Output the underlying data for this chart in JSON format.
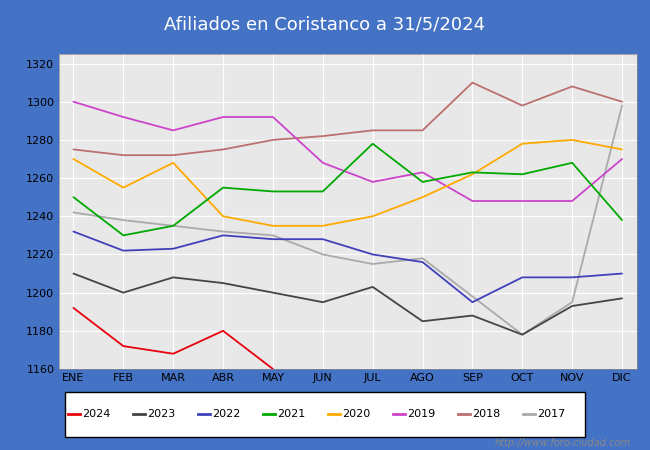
{
  "title": "Afiliados en Coristanco a 31/5/2024",
  "title_bg_color": "#4472c4",
  "title_text_color": "white",
  "months": [
    "ENE",
    "FEB",
    "MAR",
    "ABR",
    "MAY",
    "JUN",
    "JUL",
    "AGO",
    "SEP",
    "OCT",
    "NOV",
    "DIC"
  ],
  "ylim": [
    1160,
    1325
  ],
  "yticks": [
    1160,
    1180,
    1200,
    1220,
    1240,
    1260,
    1280,
    1300,
    1320
  ],
  "series": {
    "2024": {
      "color": "#e8000d",
      "data": [
        1192,
        1172,
        1168,
        1180,
        1160,
        null,
        null,
        null,
        null,
        null,
        null,
        null
      ]
    },
    "2023": {
      "color": "#444444",
      "data": [
        1210,
        1200,
        1208,
        1205,
        1200,
        1195,
        1203,
        1185,
        1188,
        1178,
        1193,
        1197
      ]
    },
    "2022": {
      "color": "#4040bb",
      "data": [
        1232,
        1222,
        1223,
        1230,
        1228,
        1228,
        1220,
        1216,
        1195,
        1208,
        1208,
        1210
      ]
    },
    "2021": {
      "color": "#00aa00",
      "data": [
        1250,
        1230,
        1235,
        1255,
        1253,
        1253,
        1278,
        1258,
        1263,
        1262,
        1268,
        1238
      ]
    },
    "2020": {
      "color": "#ffaa00",
      "data": [
        1270,
        1255,
        1268,
        1240,
        1235,
        1235,
        1240,
        1250,
        1262,
        1278,
        1280,
        1275
      ]
    },
    "2019": {
      "color": "#cc44cc",
      "data": [
        1300,
        1292,
        1285,
        1292,
        1292,
        1268,
        1258,
        1263,
        1248,
        1248,
        1248,
        1270
      ]
    },
    "2018": {
      "color": "#bb7070",
      "data": [
        1275,
        1272,
        1272,
        1275,
        1280,
        1282,
        1285,
        1285,
        1310,
        1298,
        1308,
        1300
      ]
    },
    "2017": {
      "color": "#aaaaaa",
      "data": [
        1242,
        1238,
        1235,
        1232,
        1230,
        1220,
        1215,
        1218,
        1198,
        1178,
        1195,
        1298
      ]
    }
  },
  "watermark": "http://www.foro-ciudad.com",
  "outer_bg_color": "#4472c4",
  "plot_bg_color": "#e8e8e8",
  "grid_color": "#ffffff"
}
